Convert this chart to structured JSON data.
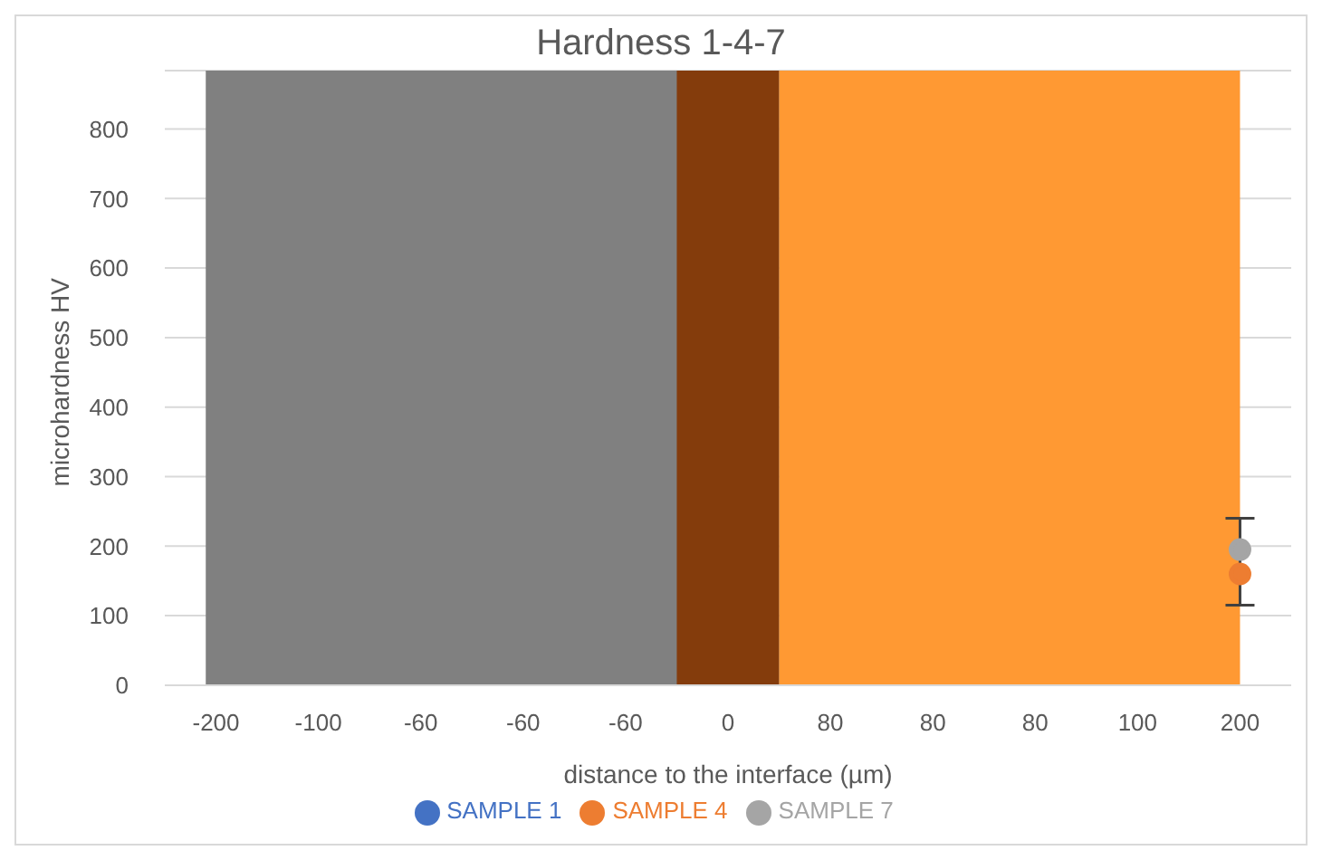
{
  "chart_data": {
    "type": "line",
    "title": "Hardness 1-4-7",
    "xlabel": "distance to the interface (µm)",
    "ylabel": "microhardness HV",
    "categories": [
      "-200",
      "-100",
      "-60",
      "-60",
      "-60",
      "0",
      "80",
      "80",
      "80",
      "100",
      "200"
    ],
    "series": [
      {
        "name": "SAMPLE 1",
        "color": "#4472c4",
        "values": [
          null,
          null,
          null,
          null,
          null,
          null,
          null,
          null,
          null,
          null,
          null
        ]
      },
      {
        "name": "SAMPLE 4",
        "color": "#ed7d31",
        "values": [
          null,
          null,
          null,
          null,
          null,
          null,
          null,
          null,
          null,
          null,
          160
        ],
        "errors": [
          null,
          null,
          null,
          null,
          null,
          null,
          null,
          null,
          null,
          null,
          [
            115,
            240
          ]
        ]
      },
      {
        "name": "SAMPLE 7",
        "color": "#a5a5a5",
        "values": [
          null,
          null,
          null,
          null,
          null,
          null,
          null,
          null,
          null,
          null,
          195
        ]
      }
    ],
    "bands": [
      {
        "axis": "x",
        "from": "-200",
        "to": "0",
        "color": "#808080"
      },
      {
        "axis": "x",
        "from": "0",
        "to": "0",
        "color": "#843c0c"
      },
      {
        "axis": "x",
        "from": "80",
        "to": "200",
        "color": "#ff9933"
      }
    ],
    "ylim": [
      0,
      884
    ],
    "yticks": [
      0,
      100,
      200,
      300,
      400,
      500,
      600,
      700,
      800
    ],
    "grid": "y",
    "legend": "bottom",
    "marker": "circle",
    "line_style": "solid"
  }
}
